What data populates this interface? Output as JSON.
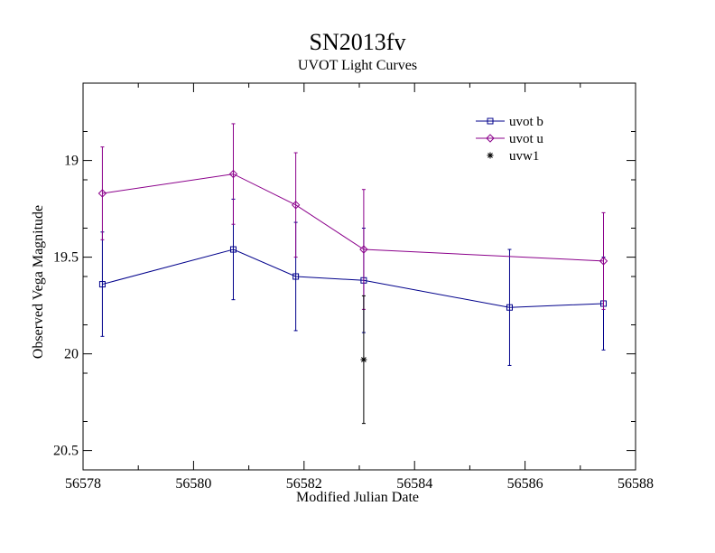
{
  "chart_data": {
    "type": "line",
    "title": "SN2013fv",
    "subtitle": "UVOT Light Curves",
    "xlabel": "Modified Julian Date",
    "ylabel": "Observed Vega Magnitude",
    "xlim": [
      56578,
      56588
    ],
    "ylim": [
      20.6,
      18.6
    ],
    "y_inverted": true,
    "x_ticks": [
      56578,
      56580,
      56582,
      56584,
      56586,
      56588
    ],
    "x_tick_labels": [
      "56578",
      "56580",
      "56582",
      "56584",
      "56586",
      "56588"
    ],
    "y_ticks": [
      19.0,
      19.5,
      20.0,
      20.5
    ],
    "y_tick_labels": [
      "19",
      "19.5",
      "20",
      "20.5"
    ],
    "grid": false,
    "legend_position": "top-right",
    "series": [
      {
        "name": "uvot b",
        "color": "#00008b",
        "marker": "square",
        "x": [
          56578.35,
          56580.72,
          56581.85,
          56583.08,
          56585.72,
          56587.42
        ],
        "y": [
          19.64,
          19.46,
          19.6,
          19.62,
          19.76,
          19.74
        ],
        "yerr": [
          0.27,
          0.26,
          0.28,
          0.27,
          0.3,
          0.24
        ]
      },
      {
        "name": "uvot u",
        "color": "#8b008b",
        "marker": "diamond",
        "x": [
          56578.35,
          56580.72,
          56581.85,
          56583.08,
          56587.42
        ],
        "y": [
          19.17,
          19.07,
          19.23,
          19.46,
          19.52
        ],
        "yerr": [
          0.24,
          0.26,
          0.27,
          0.31,
          0.25
        ]
      },
      {
        "name": "uvw1",
        "color": "#000000",
        "marker": "star",
        "x": [
          56583.08
        ],
        "y": [
          20.03
        ],
        "yerr": [
          0.33
        ]
      }
    ]
  }
}
